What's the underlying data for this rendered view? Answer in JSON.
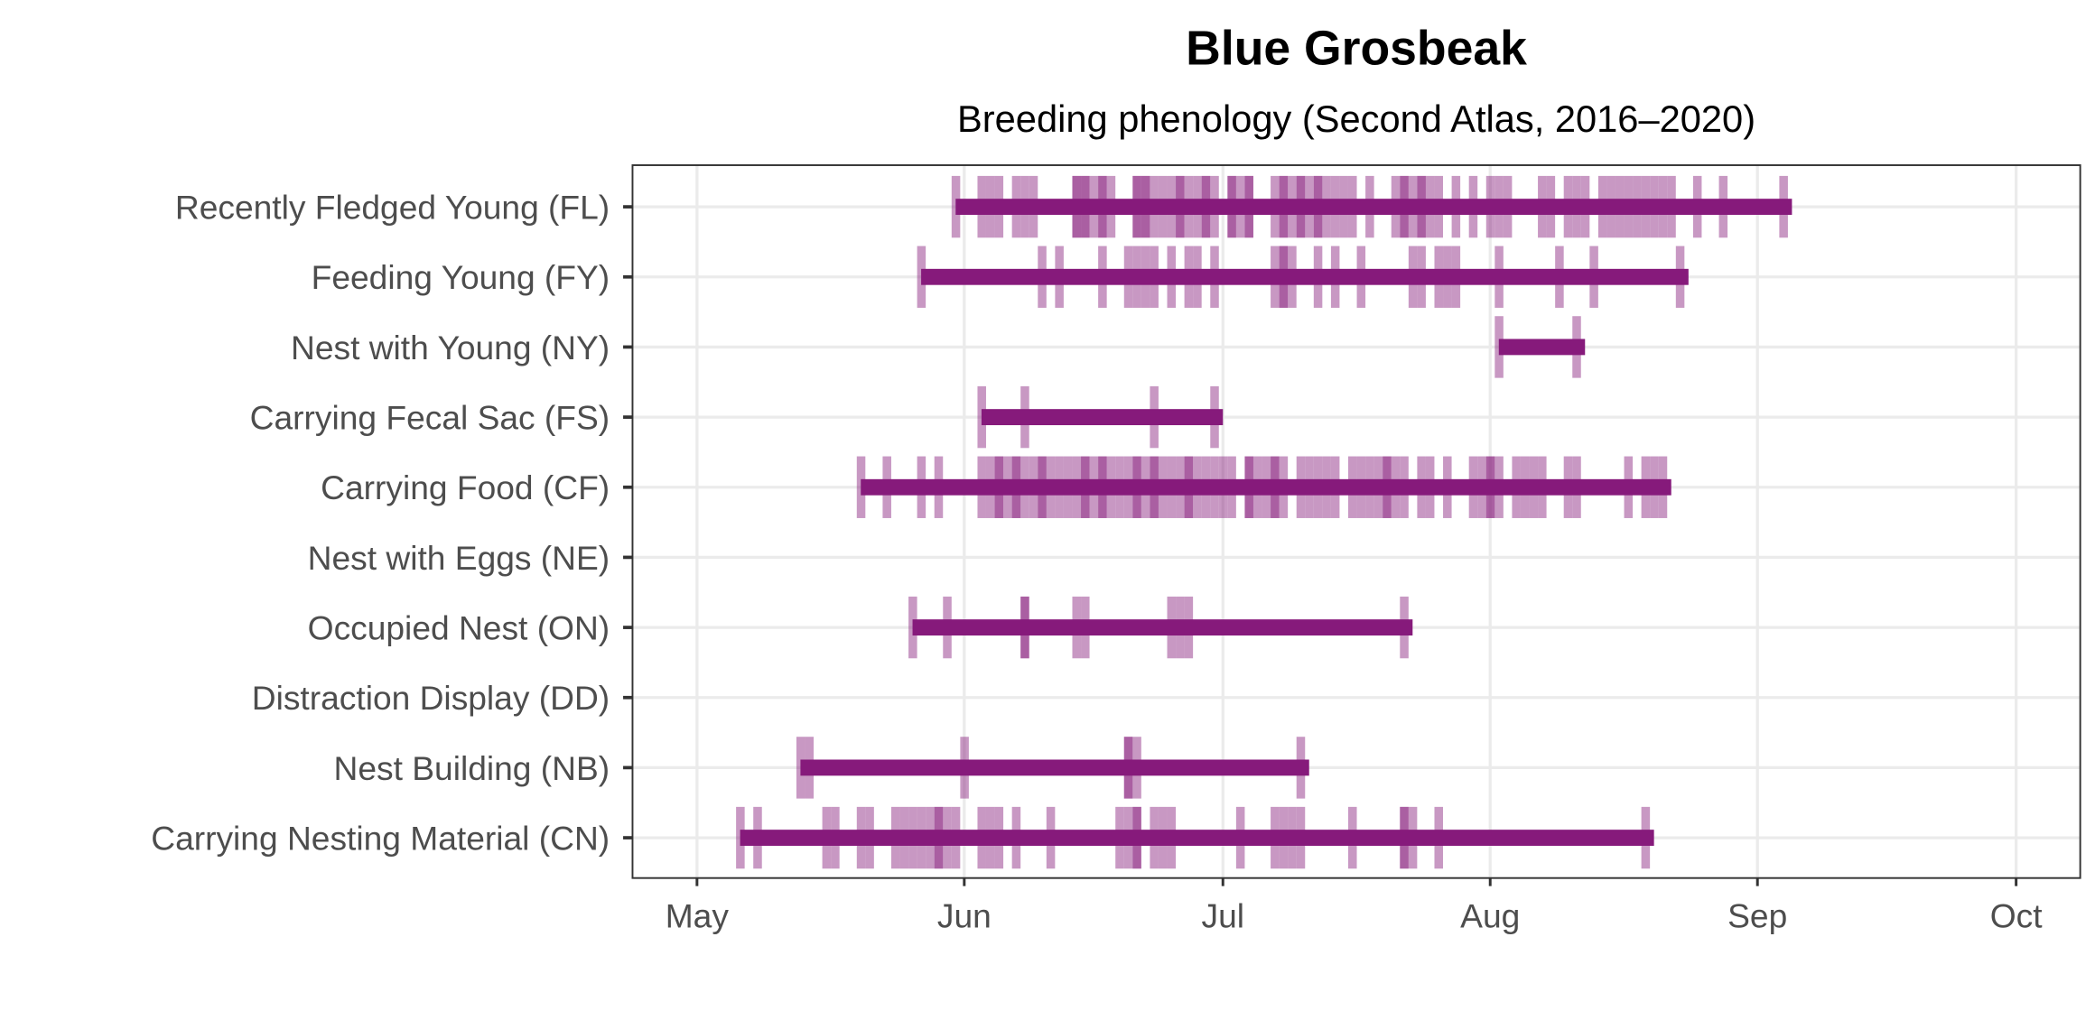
{
  "chart_data": {
    "type": "timeline",
    "title": "Blue Grosbeak",
    "subtitle": "Breeding phenology (Second Atlas, 2016–2020)",
    "xlabel": "",
    "ylabel": "",
    "x_unit": "days since May 1",
    "xlim": [
      -7.5,
      160
    ],
    "x_ticks": [
      {
        "label": "May",
        "day": 0
      },
      {
        "label": "Jun",
        "day": 31
      },
      {
        "label": "Jul",
        "day": 61
      },
      {
        "label": "Aug",
        "day": 92
      },
      {
        "label": "Sep",
        "day": 123
      },
      {
        "label": "Oct",
        "day": 153
      }
    ],
    "grid": true,
    "colors": {
      "bar": "#861a7b",
      "tick": "#861a7b",
      "grid": "#ebebeb",
      "axis": "#333333"
    },
    "series": [
      {
        "name": "Recently Fledged Young (FL)",
        "range": [
          30,
          127
        ],
        "obs": [
          30,
          33,
          34,
          35,
          37,
          38,
          39,
          44,
          44,
          45,
          45,
          46,
          47,
          47,
          48,
          51,
          51,
          52,
          52,
          53,
          54,
          55,
          56,
          56,
          57,
          58,
          59,
          59,
          60,
          62,
          62,
          63,
          64,
          64,
          67,
          68,
          68,
          69,
          70,
          70,
          71,
          72,
          72,
          73,
          74,
          75,
          76,
          78,
          81,
          82,
          82,
          83,
          84,
          84,
          85,
          86,
          88,
          90,
          92,
          93,
          94,
          98,
          99,
          101,
          102,
          103,
          105,
          106,
          107,
          108,
          109,
          110,
          111,
          112,
          113,
          116,
          119,
          126
        ]
      },
      {
        "name": "Feeding Young (FY)",
        "range": [
          26,
          115
        ],
        "obs": [
          26,
          40,
          42,
          47,
          50,
          51,
          52,
          53,
          55,
          57,
          58,
          60,
          67,
          68,
          68,
          69,
          72,
          74,
          77,
          83,
          84,
          86,
          87,
          88,
          93,
          100,
          104,
          114
        ]
      },
      {
        "name": "Nest with Young (NY)",
        "range": [
          93,
          103
        ],
        "obs": [
          93,
          102
        ]
      },
      {
        "name": "Carrying Fecal Sac (FS)",
        "range": [
          33,
          61
        ],
        "obs": [
          33,
          38,
          53,
          60
        ]
      },
      {
        "name": "Carrying Food (CF)",
        "range": [
          19,
          113
        ],
        "obs": [
          19,
          22,
          26,
          28,
          33,
          34,
          35,
          35,
          36,
          37,
          37,
          38,
          39,
          40,
          40,
          41,
          42,
          43,
          44,
          45,
          45,
          46,
          47,
          47,
          48,
          49,
          50,
          51,
          51,
          52,
          53,
          53,
          54,
          55,
          56,
          57,
          57,
          58,
          59,
          60,
          61,
          62,
          64,
          64,
          65,
          66,
          67,
          67,
          68,
          70,
          71,
          72,
          73,
          74,
          76,
          77,
          78,
          79,
          80,
          80,
          81,
          82,
          84,
          85,
          87,
          90,
          91,
          92,
          92,
          93,
          95,
          96,
          97,
          98,
          101,
          102,
          108,
          110,
          111,
          112
        ]
      },
      {
        "name": "Nest with Eggs (NE)",
        "range": null,
        "obs": []
      },
      {
        "name": "Occupied Nest (ON)",
        "range": [
          25,
          83
        ],
        "obs": [
          25,
          29,
          38,
          38,
          44,
          45,
          55,
          56,
          57,
          82
        ]
      },
      {
        "name": "Distraction Display (DD)",
        "range": null,
        "obs": []
      },
      {
        "name": "Nest Building (NB)",
        "range": [
          12,
          71
        ],
        "obs": [
          12,
          13,
          31,
          50,
          50,
          51,
          70
        ]
      },
      {
        "name": "Carrying Nesting Material (CN)",
        "range": [
          5,
          111
        ],
        "obs": [
          5,
          7,
          15,
          16,
          19,
          20,
          23,
          24,
          25,
          26,
          27,
          28,
          28,
          29,
          30,
          33,
          34,
          35,
          37,
          41,
          49,
          50,
          51,
          51,
          53,
          54,
          55,
          63,
          67,
          68,
          69,
          70,
          76,
          82,
          82,
          83,
          86,
          110
        ]
      }
    ]
  }
}
